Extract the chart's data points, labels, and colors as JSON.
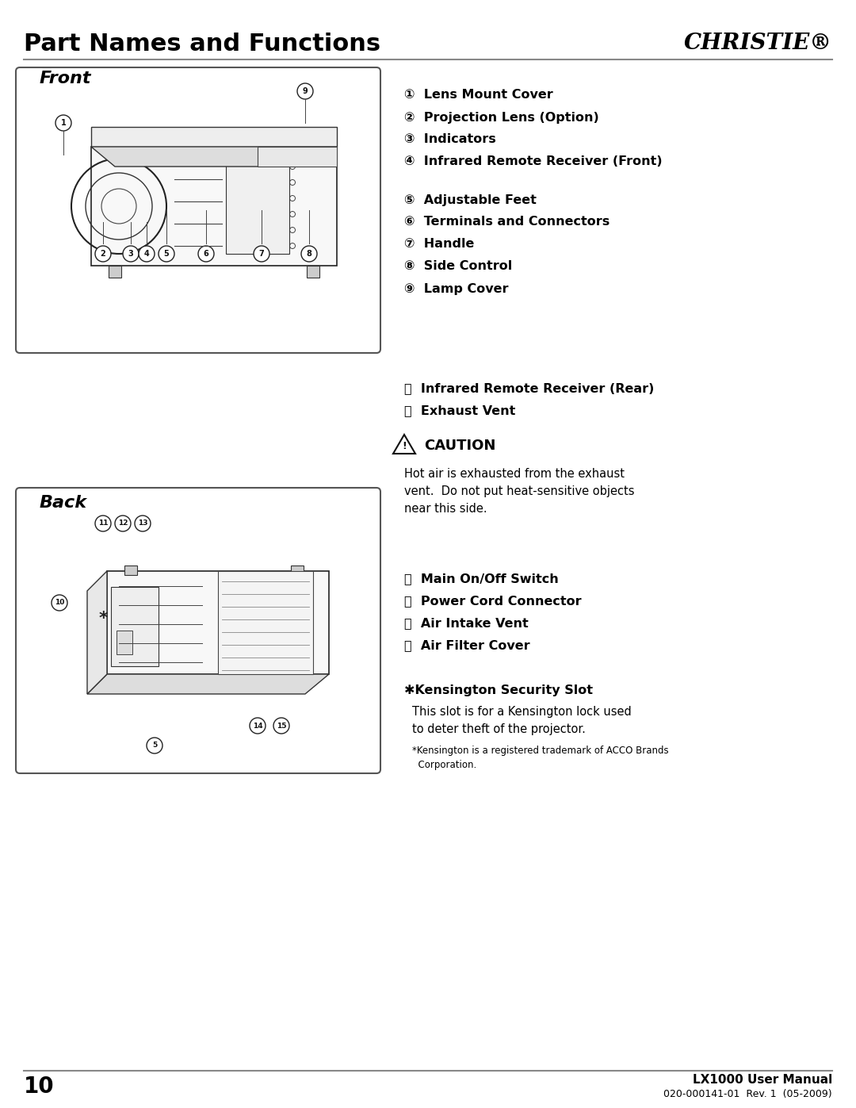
{
  "page_title": "Part Names and Functions",
  "brand": "CHRISTIE®",
  "page_number": "10",
  "footer_line1": "LX1000 User Manual",
  "footer_line2": "020-000141-01  Rev. 1  (05-2009)",
  "front_label": "Front",
  "back_label": "Back",
  "front_items_group1": [
    "①  Lens Mount Cover",
    "②  Projection Lens (Option)",
    "③  Indicators",
    "④  Infrared Remote Receiver (Front)"
  ],
  "front_items_group2": [
    "⑤  Adjustable Feet",
    "⑥  Terminals and Connectors",
    "⑦  Handle",
    "⑧  Side Control",
    "⑨  Lamp Cover"
  ],
  "rear_items": [
    "⑪  Infrared Remote Receiver (Rear)",
    "⑫  Exhaust Vent"
  ],
  "caution_title": "CAUTION",
  "caution_text": "Hot air is exhausted from the exhaust\nvent.  Do not put heat-sensitive objects\nnear this side.",
  "back_items": [
    "⑬  Main On/Off Switch",
    "⑭  Power Cord Connector",
    "⑮  Air Intake Vent",
    "⑯  Air Filter Cover"
  ],
  "kensington_title": "✱Kensington Security Slot",
  "kensington_text1": "This slot is for a Kensington lock used\nto deter theft of the projector.",
  "kensington_text2": "*Kensington is a registered trademark of ACCO Brands\n  Corporation.",
  "bg_color": "#ffffff",
  "text_color": "#000000",
  "box_border_color": "#555555",
  "line_color": "#999999"
}
